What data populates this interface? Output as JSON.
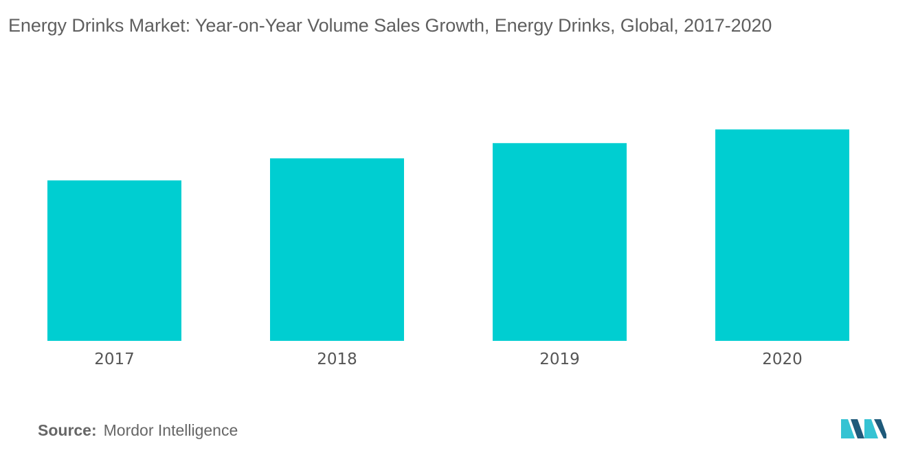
{
  "title": "Energy Drinks Market: Year-on-Year Volume Sales Growth, Energy Drinks, Global, 2017-2020",
  "source": {
    "label": "Source:",
    "value": "Mordor Intelligence"
  },
  "colors": {
    "bar": "#00CED1",
    "logo_dark": "#1f5a7a",
    "logo_light": "#35c3d3"
  },
  "logo_icon": "mordor-intelligence-logo-icon",
  "chart_data": {
    "type": "bar",
    "categories": [
      "2017",
      "2018",
      "2019",
      "2020"
    ],
    "values": [
      211,
      240,
      260,
      278
    ],
    "ylim": [
      0,
      300
    ],
    "grid": false,
    "legend": "none"
  }
}
